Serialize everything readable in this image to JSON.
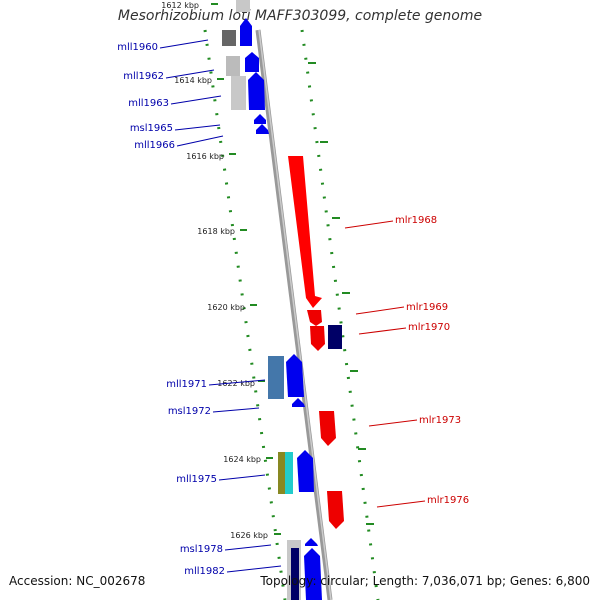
{
  "title": "Mesorhizobium loti MAFF303099, complete genome",
  "footer": {
    "accession": "Accession: NC_002678",
    "topology": "Topology: circular;",
    "length": "Length: 7,036,071 bp;",
    "genes": "Genes: 6,800"
  },
  "scale_ticks": [
    "1612 kbp",
    "1614 kbp",
    "1616 kbp",
    "1618 kbp",
    "1620 kbp",
    "1622 kbp",
    "1624 kbp",
    "1626 kbp"
  ],
  "genes_left": [
    "mll1960",
    "mll1962",
    "mll1963",
    "msl1965",
    "mll1966",
    "mll1971",
    "msl1972",
    "mll1975",
    "msl1978",
    "mll1982"
  ],
  "genes_right": [
    "mlr1968",
    "mlr1969",
    "mlr1970",
    "mlr1973",
    "mlr1976"
  ],
  "colors": {
    "reverse_strand": "#0000ff",
    "forward_strand": "#ff0000",
    "left_label": "#0000aa",
    "right_label": "#cc0000",
    "scale_dash": "#228b22",
    "backbone": "#888888"
  }
}
